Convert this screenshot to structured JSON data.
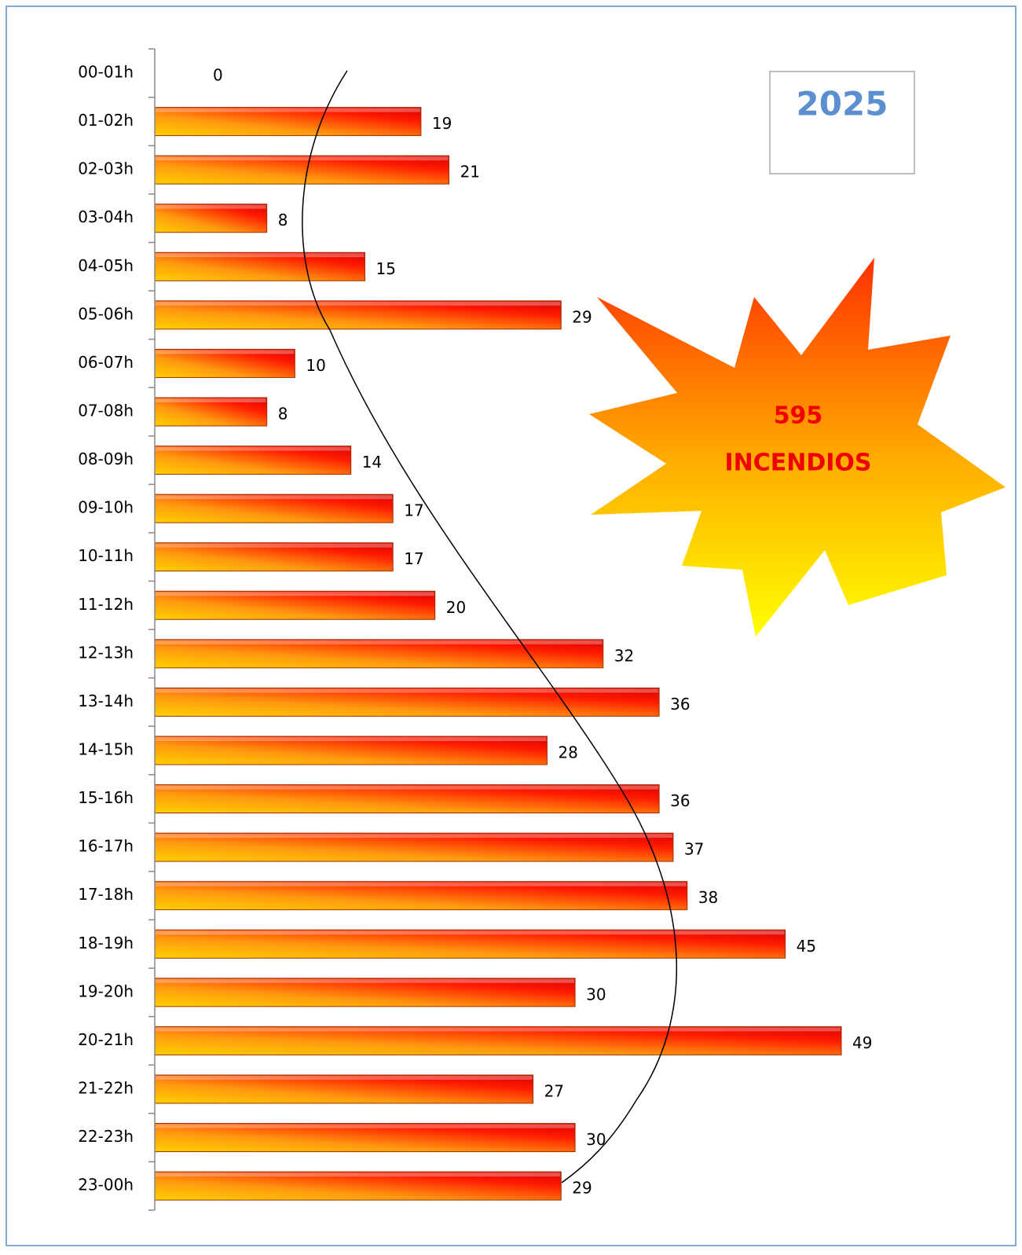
{
  "chart_data": {
    "type": "bar",
    "orientation": "horizontal",
    "categories": [
      "00-01h",
      "01-02h",
      "02-03h",
      "03-04h",
      "04-05h",
      "05-06h",
      "06-07h",
      "07-08h",
      "08-09h",
      "09-10h",
      "10-11h",
      "11-12h",
      "12-13h",
      "13-14h",
      "14-15h",
      "15-16h",
      "16-17h",
      "17-18h",
      "18-19h",
      "19-20h",
      "20-21h",
      "21-22h",
      "22-23h",
      "23-00h"
    ],
    "values": [
      0,
      19,
      21,
      8,
      15,
      29,
      10,
      8,
      14,
      17,
      17,
      20,
      32,
      36,
      28,
      36,
      37,
      38,
      45,
      30,
      49,
      27,
      30,
      29
    ],
    "color": "#ff1a00",
    "annotations": {
      "year": "2025",
      "total": "595",
      "total_label": "INCENDIOS"
    }
  }
}
